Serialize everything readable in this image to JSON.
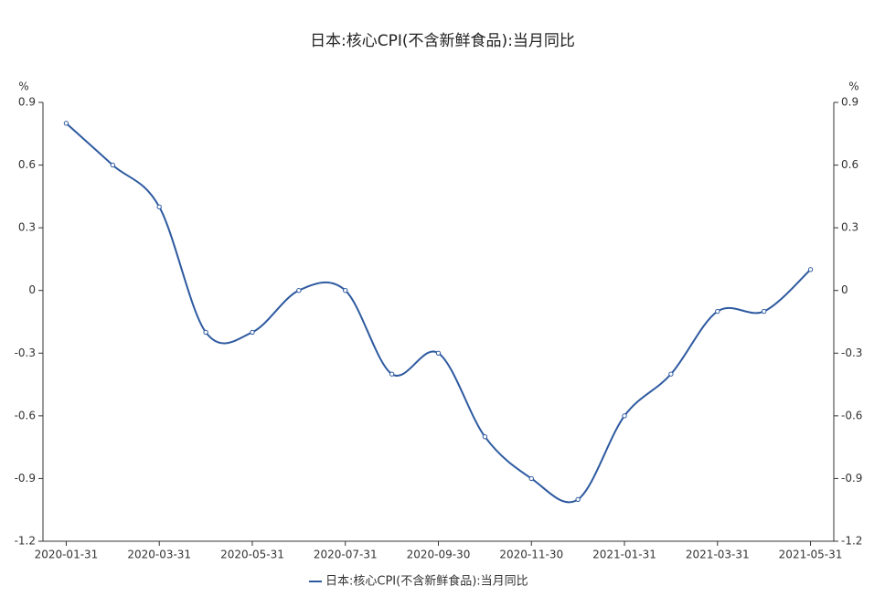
{
  "chart_data": {
    "type": "line",
    "title": "日本:核心CPI(不含新鲜食品):当月同比",
    "y_label": "%",
    "y2_label": "%",
    "categories": [
      "2020-01-31",
      null,
      "2020-03-31",
      null,
      "2020-05-31",
      null,
      "2020-07-31",
      null,
      "2020-09-30",
      null,
      "2020-11-30",
      null,
      "2021-01-31",
      null,
      "2021-03-31",
      null,
      "2021-05-31"
    ],
    "series": [
      {
        "name": "日本:核心CPI(不含新鲜食品):当月同比",
        "color": "#2e5aa0",
        "values": [
          0.8,
          0.6,
          0.4,
          -0.2,
          -0.2,
          0,
          0,
          -0.4,
          -0.3,
          -0.7,
          -0.9,
          -1.0,
          -0.6,
          -0.4,
          -0.1,
          -0.1,
          0.1
        ]
      }
    ],
    "ylim": [
      -1.2,
      0.9
    ],
    "yticks": [
      -1.2,
      -0.9,
      -0.6,
      -0.3,
      0,
      0.3,
      0.6,
      0.9
    ],
    "y2lim": [
      -1.2,
      0.9
    ],
    "y2ticks": [
      -1.2,
      -0.9,
      -0.6,
      -0.3,
      0,
      0.3,
      0.6,
      0.9
    ],
    "grid": false,
    "legend": "bottom",
    "smooth": true
  }
}
